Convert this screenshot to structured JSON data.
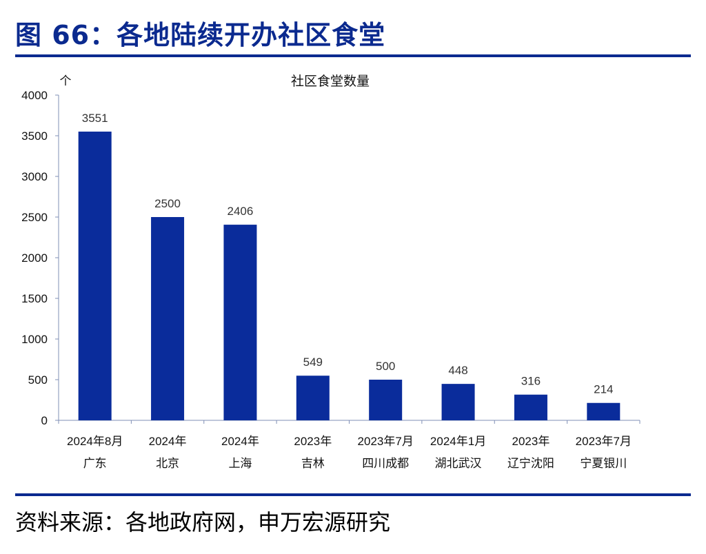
{
  "figure": {
    "title": "图 66：各地陆续开办社区食堂",
    "source": "资料来源：各地政府网，申万宏源研究"
  },
  "colors": {
    "accent": "#0b2a8f",
    "bar": "#0a2c9b"
  },
  "chart_data": {
    "type": "bar",
    "title": "社区食堂数量",
    "ylabel": "个",
    "xlabel": "",
    "ylim": [
      0,
      4000
    ],
    "yticks": [
      0,
      500,
      1000,
      1500,
      2000,
      2500,
      3000,
      3500,
      4000
    ],
    "grid": false,
    "legend": "none",
    "categories": [
      [
        "2024年8月",
        "广东"
      ],
      [
        "2024年",
        "北京"
      ],
      [
        "2024年",
        "上海"
      ],
      [
        "2023年",
        "吉林"
      ],
      [
        "2023年7月",
        "四川成都"
      ],
      [
        "2024年1月",
        "湖北武汉"
      ],
      [
        "2023年",
        "辽宁沈阳"
      ],
      [
        "2023年7月",
        "宁夏银川"
      ]
    ],
    "values": [
      3551,
      2500,
      2406,
      549,
      500,
      448,
      316,
      214
    ]
  }
}
